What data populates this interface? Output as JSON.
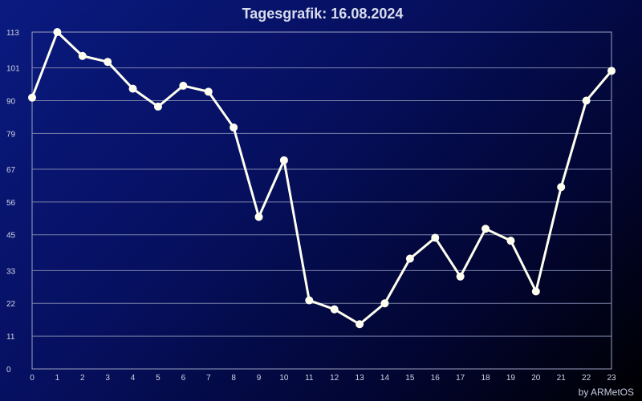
{
  "chart_data": {
    "type": "line",
    "title": "Tagesgrafik: 16.08.2024",
    "xlabel": "",
    "ylabel": "",
    "x": [
      0,
      1,
      2,
      3,
      4,
      5,
      6,
      7,
      8,
      9,
      10,
      11,
      12,
      13,
      14,
      15,
      16,
      17,
      18,
      19,
      20,
      21,
      22,
      23
    ],
    "y_ticks": [
      0,
      11,
      22,
      33,
      45,
      56,
      67,
      79,
      90,
      101,
      113
    ],
    "ylim": [
      0,
      113
    ],
    "grid": true,
    "series": [
      {
        "values": [
          91,
          113,
          105,
          103,
          94,
          88,
          95,
          93,
          81,
          51,
          70,
          23,
          20,
          15,
          22,
          37,
          44,
          31,
          47,
          43,
          26,
          61,
          90,
          100
        ]
      }
    ],
    "line_color": "#fffff0",
    "background_color": "#0a1a80"
  },
  "footer": {
    "credit": "by ARMetOS"
  }
}
